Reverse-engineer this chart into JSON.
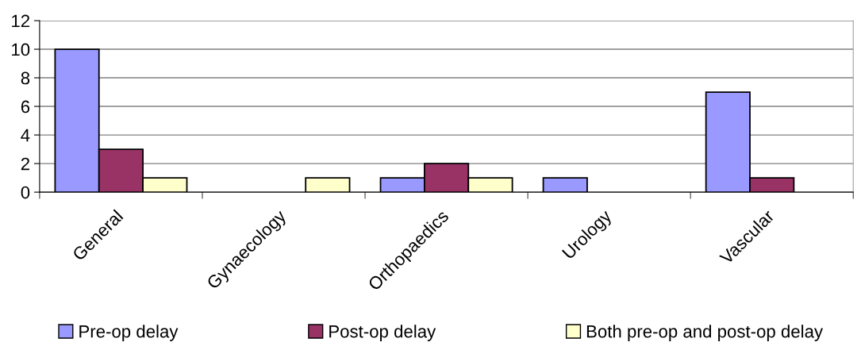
{
  "chart_data": {
    "type": "bar",
    "categories": [
      "General",
      "Gynaecology",
      "Orthopaedics",
      "Urology",
      "Vascular"
    ],
    "series": [
      {
        "name": "Pre-op delay",
        "color": "#9999ff",
        "values": [
          10,
          0,
          1,
          1,
          7
        ]
      },
      {
        "name": "Post-op delay",
        "color": "#993366",
        "values": [
          3,
          0,
          2,
          0,
          1
        ]
      },
      {
        "name": "Both pre-op and post-op delay",
        "color": "#ffffcc",
        "values": [
          1,
          1,
          1,
          0,
          0
        ]
      }
    ],
    "ylim": [
      0,
      12
    ],
    "yticks": [
      0,
      2,
      4,
      6,
      8,
      10,
      12
    ],
    "grid": "y",
    "legend": "bottom"
  }
}
